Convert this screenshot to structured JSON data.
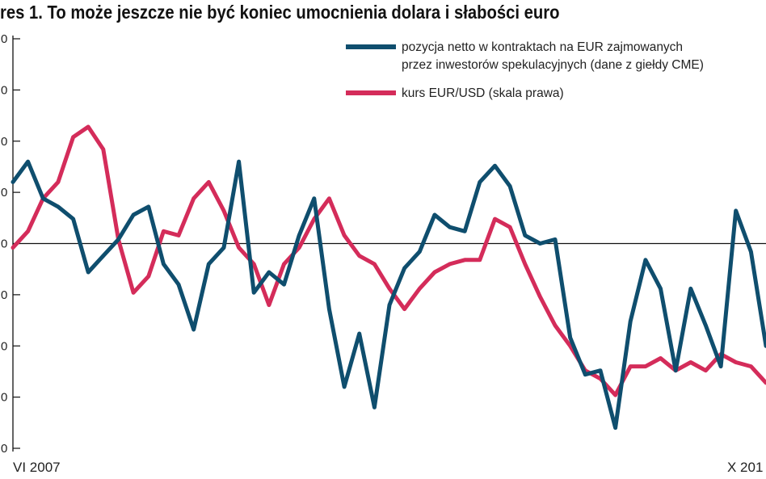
{
  "chart_title": "res 1. To może jeszcze nie być koniec umocnienia dolara i słabości euro",
  "chart_data": {
    "type": "line",
    "title": "res 1. To może jeszcze nie być koniec umocnienia dolara i słabości euro",
    "xlabel": "",
    "ylabel": "",
    "x_tick_labels": [
      "VI 2007",
      "X 201"
    ],
    "y_tick_labels": [
      "0",
      "0",
      "0",
      "0",
      "0",
      "0",
      "0",
      "0",
      "0"
    ],
    "ylim": [
      -100,
      100
    ],
    "grid": false,
    "legend_position": "top-right",
    "colors": {
      "series_blue": "#0f4e6e",
      "series_red": "#d42c5a",
      "axis": "#111111"
    },
    "x": [
      0,
      2,
      4,
      6,
      8,
      10,
      12,
      14,
      16,
      18,
      20,
      22,
      24,
      26,
      28,
      30,
      32,
      34,
      36,
      38,
      40,
      42,
      44,
      46,
      48,
      50,
      52,
      54,
      56,
      58,
      60,
      62,
      64,
      66,
      68,
      70,
      72,
      74,
      76,
      78,
      80,
      82,
      84,
      86,
      88,
      90,
      92,
      94,
      96,
      98,
      100
    ],
    "series": [
      {
        "name": "pozycja netto w kontraktach na EUR zajmowanych przez inwestorów spekulacyjnych (dane z giełdy CME)",
        "values": [
          30,
          40,
          22,
          18,
          12,
          -14,
          -6,
          2,
          14,
          18,
          -10,
          -20,
          -42,
          -10,
          -2,
          40,
          -24,
          -14,
          -20,
          4,
          22,
          -32,
          -70,
          -44,
          -80,
          -30,
          -12,
          -4,
          14,
          8,
          6,
          30,
          38,
          28,
          4,
          0,
          2,
          -46,
          -64,
          -62,
          -90,
          -38,
          -8,
          -22,
          -62,
          -22,
          -40,
          -60,
          16,
          -4,
          -50
        ]
      },
      {
        "name": "kurs EUR/USD (skala prawa)",
        "values": [
          -2,
          6,
          22,
          30,
          52,
          57,
          46,
          2,
          -24,
          -16,
          6,
          4,
          22,
          30,
          16,
          -2,
          -10,
          -30,
          -10,
          -2,
          12,
          22,
          4,
          -6,
          -10,
          -22,
          -32,
          -22,
          -14,
          -10,
          -8,
          -8,
          12,
          8,
          -10,
          -26,
          -40,
          -50,
          -62,
          -66,
          -74,
          -60,
          -60,
          -56,
          -62,
          -58,
          -62,
          -54,
          -58,
          -60,
          -68
        ]
      }
    ]
  }
}
